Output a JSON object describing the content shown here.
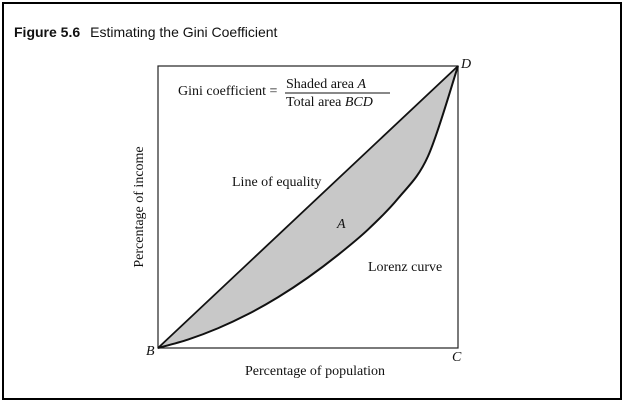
{
  "figure": {
    "number": "Figure 5.6",
    "title": "Estimating the Gini Coefficient"
  },
  "chart_data": {
    "type": "area",
    "title": "Estimating the Gini Coefficient",
    "xlabel": "Percentage of population",
    "ylabel": "Percentage of income",
    "xlim": [
      0,
      100
    ],
    "ylim": [
      0,
      100
    ],
    "series": [
      {
        "name": "Line of equality",
        "x": [
          0,
          100
        ],
        "y": [
          0,
          100
        ]
      },
      {
        "name": "Lorenz curve",
        "x": [
          0,
          10,
          20,
          30,
          40,
          50,
          60,
          70,
          80,
          90,
          100
        ],
        "y": [
          0,
          3,
          7,
          12,
          18,
          25,
          33,
          42,
          53,
          68,
          100
        ]
      }
    ],
    "shaded_region": {
      "label": "A",
      "color": "#c8c8c8"
    },
    "points": {
      "origin": "B",
      "corner": "C",
      "top": "D"
    },
    "formula": {
      "lhs": "Gini coefficient =",
      "numerator": "Shaded area",
      "numerator_var": "A",
      "denominator": "Total area",
      "denominator_var": "BCD"
    },
    "annotations": {
      "equality_label": "Line of equality",
      "lorenz_label": "Lorenz curve"
    }
  }
}
